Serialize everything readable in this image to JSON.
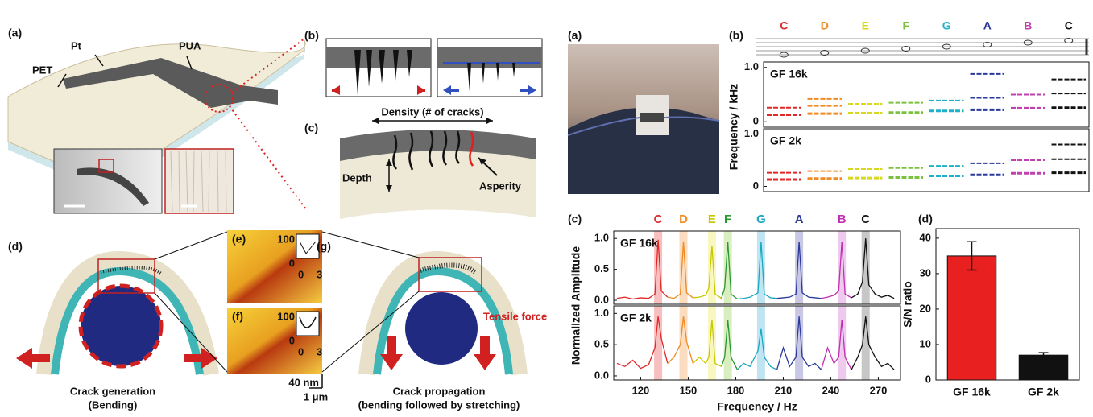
{
  "left": {
    "a": {
      "label": "(a)",
      "pet": "PET",
      "pt": "Pt",
      "pua": "PUA"
    },
    "b": {
      "label": "(b)"
    },
    "c": {
      "label": "(c)",
      "density": "Density (# of cracks)",
      "depth": "Depth",
      "asperity": "Asperity"
    },
    "d": {
      "label": "(d)",
      "caption": [
        "Crack generation",
        "(Bending)"
      ]
    },
    "e": {
      "label": "(e)",
      "ticks": [
        "100",
        "0",
        "0",
        "3"
      ]
    },
    "f": {
      "label": "(f)",
      "ticks": [
        "100",
        "0",
        "0",
        "3"
      ]
    },
    "scale": [
      "40 nm",
      "1 μm"
    ],
    "g": {
      "label": "(g)",
      "force": "Tensile force",
      "caption": [
        "Crack propagation",
        "(bending followed by stretching)"
      ]
    }
  },
  "right": {
    "a": {
      "label": "(a)"
    },
    "b": {
      "label": "(b)",
      "notes": [
        {
          "name": "C",
          "color": "#e02828"
        },
        {
          "name": "D",
          "color": "#f08a24"
        },
        {
          "name": "E",
          "color": "#d8d820"
        },
        {
          "name": "F",
          "color": "#7cc040"
        },
        {
          "name": "G",
          "color": "#20b0c8"
        },
        {
          "name": "A",
          "color": "#2a3a9a"
        },
        {
          "name": "B",
          "color": "#c040b0"
        },
        {
          "name": "C",
          "color": "#111111"
        }
      ]
    },
    "c": {
      "label": "(c)"
    },
    "d": {
      "label": "(d)"
    }
  },
  "chart_data": [
    {
      "type": "spectrogram",
      "title": "GF 16k",
      "ylabel": "Frequency / kHz",
      "ylim": [
        -0.1,
        1.1
      ],
      "yticks": [
        0,
        {
          "value": 1,
          "label": "1.0"
        }
      ],
      "series": [
        {
          "color": "#e02828",
          "values": [
            0.26,
            0.13
          ]
        },
        {
          "color": "#f08a24",
          "values": [
            0.42,
            0.29,
            0.15
          ]
        },
        {
          "color": "#d8d820",
          "values": [
            0.33,
            0.16
          ]
        },
        {
          "color": "#7cc040",
          "values": [
            0.35,
            0.17
          ]
        },
        {
          "color": "#20b0c8",
          "values": [
            0.39,
            0.2
          ]
        },
        {
          "color": "#2a3a9a",
          "values": [
            0.88,
            0.44,
            0.22
          ]
        },
        {
          "color": "#c040b0",
          "values": [
            0.5,
            0.25
          ]
        },
        {
          "color": "#111111",
          "values": [
            0.78,
            0.52,
            0.26
          ]
        }
      ]
    },
    {
      "type": "spectrogram",
      "title": "GF 2k",
      "ylim": [
        -0.1,
        1.1
      ],
      "yticks": [
        0,
        {
          "value": 1,
          "label": "1.0"
        }
      ],
      "series": [
        {
          "color": "#e02828",
          "values": [
            0.26,
            0.13
          ]
        },
        {
          "color": "#f08a24",
          "values": [
            0.29,
            0.15
          ]
        },
        {
          "color": "#d8d820",
          "values": [
            0.33,
            0.16
          ]
        },
        {
          "color": "#7cc040",
          "values": [
            0.35,
            0.17
          ]
        },
        {
          "color": "#20b0c8",
          "values": [
            0.39,
            0.2
          ]
        },
        {
          "color": "#2a3a9a",
          "values": [
            0.44,
            0.22
          ]
        },
        {
          "color": "#c040b0",
          "values": [
            0.5,
            0.25
          ]
        },
        {
          "color": "#111111",
          "values": [
            0.8,
            0.52,
            0.26
          ]
        }
      ]
    },
    {
      "type": "line",
      "title": "GF 16k",
      "ylabel": "Normalized Amplitude",
      "xlim": [
        103,
        284
      ],
      "ylim": [
        -0.065,
        1.12
      ],
      "yticks": [
        {
          "value": 0,
          "label": "0.0"
        },
        0.5,
        {
          "value": 1,
          "label": "1.0"
        }
      ],
      "series": [
        {
          "name": "C",
          "color": "#e02828",
          "band": 131,
          "band_color": "#f08a8a",
          "x": [
            105,
            110,
            115,
            120,
            125,
            129,
            131,
            133,
            137
          ],
          "values": [
            0.03,
            0.05,
            0.02,
            0.04,
            0.03,
            0.1,
            0.98,
            0.15,
            0.05
          ]
        },
        {
          "name": "D",
          "color": "#f08a24",
          "band": 147,
          "band_color": "#f5c08a",
          "x": [
            137,
            141,
            145,
            147,
            149,
            153
          ],
          "values": [
            0.05,
            0.03,
            0.1,
            0.95,
            0.12,
            0.04
          ]
        },
        {
          "name": "E",
          "color": "#c8c800",
          "band": 165,
          "band_color": "#f0f08a",
          "x": [
            153,
            157,
            161,
            163,
            165,
            167,
            171
          ],
          "values": [
            0.04,
            0.05,
            0.08,
            0.2,
            0.88,
            0.1,
            0.03
          ]
        },
        {
          "name": "F",
          "color": "#2a9a30",
          "band": 175,
          "band_color": "#b8e08a",
          "x": [
            171,
            173,
            175,
            177,
            181
          ],
          "values": [
            0.03,
            0.2,
            0.95,
            0.1,
            0.02
          ]
        },
        {
          "name": "G",
          "color": "#1aa7c0",
          "band": 196,
          "band_color": "#8ad0e8",
          "x": [
            181,
            185,
            189,
            194,
            196,
            198,
            202,
            206
          ],
          "values": [
            0.02,
            0.03,
            0.05,
            0.12,
            0.95,
            0.1,
            0.04,
            0.03
          ]
        },
        {
          "name": "A",
          "color": "#2a3a9a",
          "band": 220,
          "band_color": "#9a9ad0",
          "x": [
            206,
            210,
            214,
            218,
            220,
            222,
            226,
            230,
            234
          ],
          "values": [
            0.03,
            0.04,
            0.05,
            0.1,
            0.95,
            0.12,
            0.05,
            0.04,
            0.03
          ]
        },
        {
          "name": "B",
          "color": "#c030b0",
          "band": 247,
          "band_color": "#e0a0e0",
          "x": [
            234,
            238,
            242,
            245,
            247,
            249,
            253
          ],
          "values": [
            0.03,
            0.05,
            0.08,
            0.15,
            0.95,
            0.1,
            0.04
          ]
        },
        {
          "name": "C",
          "color": "#111111",
          "band": 262,
          "band_color": "#999999",
          "x": [
            253,
            257,
            260,
            262,
            264,
            268,
            272,
            276,
            280
          ],
          "values": [
            0.04,
            0.1,
            0.3,
            1.0,
            0.25,
            0.1,
            0.05,
            0.08,
            0.03
          ]
        }
      ]
    },
    {
      "type": "line",
      "title": "GF 2k",
      "xlabel": "Frequency / Hz",
      "xlim": [
        103,
        284
      ],
      "ylim": [
        -0.065,
        1.12
      ],
      "yticks": [
        {
          "value": 0,
          "label": "0.0"
        },
        0.5,
        {
          "value": 1,
          "label": "1.0"
        }
      ],
      "xticks": [
        120,
        150,
        180,
        210,
        240,
        270
      ],
      "series": [
        {
          "color": "#e02828",
          "band": 131,
          "band_color": "#f08a8a",
          "x": [
            105,
            110,
            115,
            120,
            125,
            129,
            131,
            133,
            137
          ],
          "values": [
            0.2,
            0.15,
            0.25,
            0.12,
            0.18,
            0.45,
            0.95,
            0.6,
            0.2
          ]
        },
        {
          "color": "#f08a24",
          "band": 147,
          "band_color": "#f5c08a",
          "x": [
            137,
            141,
            145,
            147,
            149,
            153
          ],
          "values": [
            0.2,
            0.3,
            0.5,
            0.95,
            0.55,
            0.2
          ]
        },
        {
          "color": "#c8c800",
          "band": 165,
          "band_color": "#f0f08a",
          "x": [
            153,
            157,
            161,
            163,
            165,
            167,
            171
          ],
          "values": [
            0.2,
            0.3,
            0.2,
            0.3,
            0.9,
            0.2,
            0.15
          ]
        },
        {
          "color": "#2a9a30",
          "band": 175,
          "band_color": "#b8e08a",
          "x": [
            171,
            173,
            175,
            177,
            181
          ],
          "values": [
            0.15,
            0.3,
            0.9,
            0.3,
            0.1
          ]
        },
        {
          "color": "#1aa7c0",
          "band": 196,
          "band_color": "#8ad0e8",
          "x": [
            181,
            185,
            189,
            194,
            196,
            198,
            202,
            206
          ],
          "values": [
            0.1,
            0.2,
            0.15,
            0.4,
            0.75,
            0.3,
            0.15,
            0.1
          ]
        },
        {
          "color": "#2a3a9a",
          "band": 220,
          "band_color": "#9a9ad0",
          "x": [
            206,
            210,
            214,
            218,
            220,
            222,
            226,
            230,
            234
          ],
          "values": [
            0.1,
            0.45,
            0.15,
            0.3,
            0.95,
            0.3,
            0.15,
            0.2,
            0.1
          ]
        },
        {
          "color": "#c030b0",
          "band": 247,
          "band_color": "#e0a0e0",
          "x": [
            234,
            238,
            242,
            245,
            247,
            249,
            253
          ],
          "values": [
            0.1,
            0.45,
            0.2,
            0.3,
            0.9,
            0.3,
            0.1
          ]
        },
        {
          "color": "#111111",
          "band": 262,
          "band_color": "#999999",
          "x": [
            253,
            257,
            260,
            262,
            264,
            268,
            272,
            276,
            280
          ],
          "values": [
            0.1,
            0.3,
            0.5,
            0.95,
            0.5,
            0.3,
            0.15,
            0.2,
            0.1
          ]
        }
      ]
    },
    {
      "type": "bar",
      "ylabel": "S/N ratio",
      "categories": [
        "GF 16k",
        "GF 2k"
      ],
      "values": [
        35,
        7
      ],
      "errors": [
        4,
        0.7
      ],
      "colors": [
        "#e82020",
        "#111111"
      ],
      "ylim": [
        0,
        42.7
      ],
      "yticks": [
        0,
        10,
        20,
        30,
        40
      ]
    }
  ]
}
